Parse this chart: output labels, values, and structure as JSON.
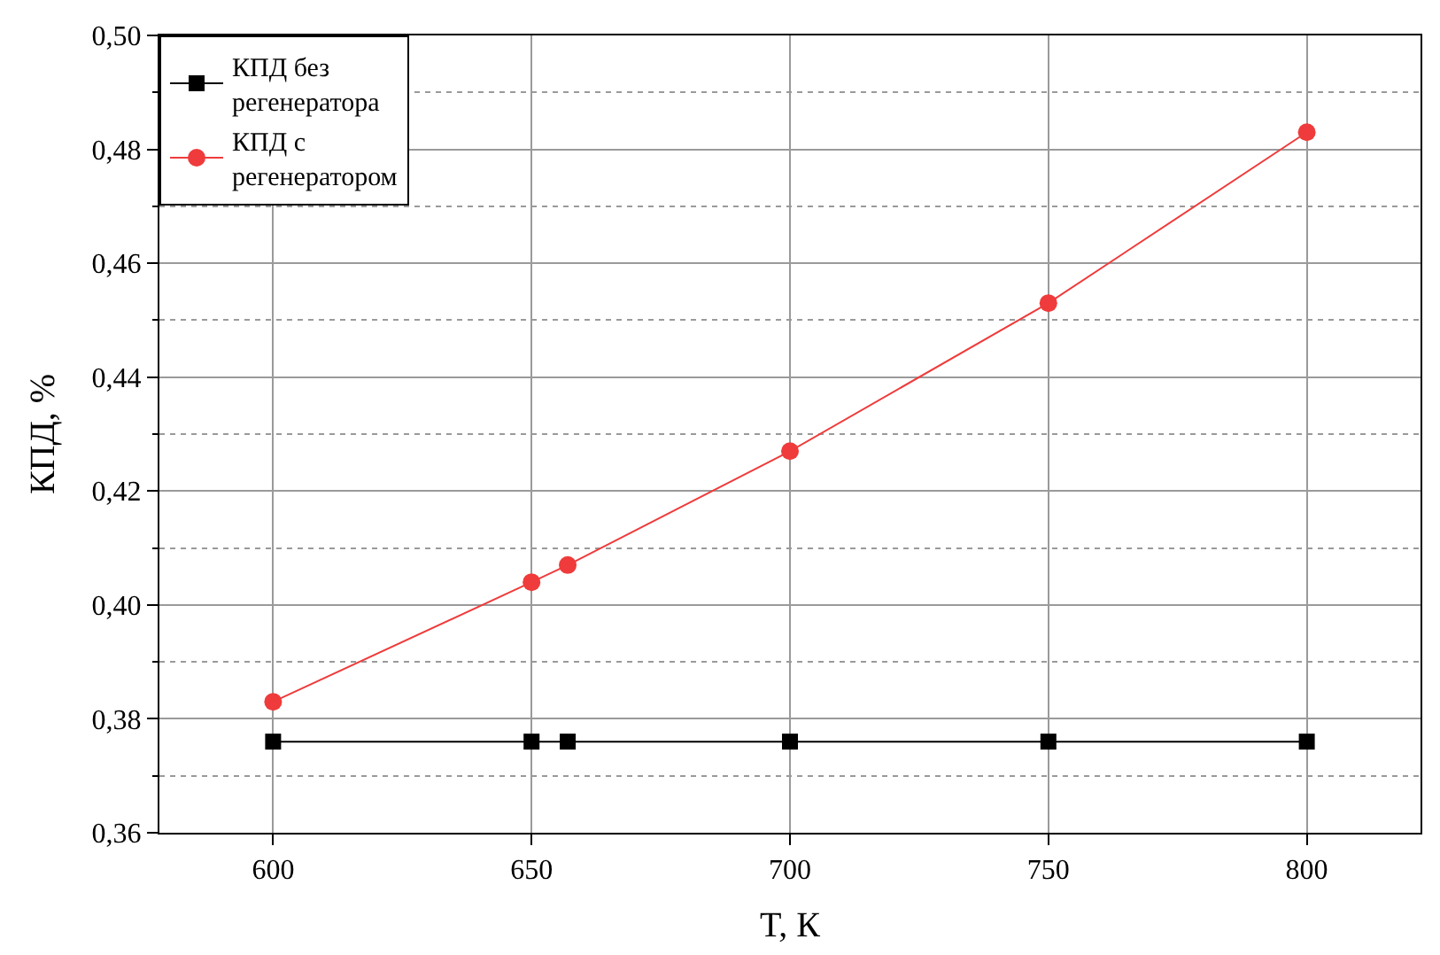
{
  "chart_data": {
    "type": "line",
    "xlabel": "T, К",
    "ylabel": "КПД, %",
    "x": [
      600,
      650,
      657,
      700,
      750,
      800
    ],
    "series": [
      {
        "name": "КПД без регенератора",
        "color": "#000000",
        "marker": "square",
        "values": [
          0.376,
          0.376,
          0.376,
          0.376,
          0.376,
          0.376
        ]
      },
      {
        "name": "КПД с регенератором",
        "color": "#ef3b3b",
        "marker": "circle",
        "values": [
          0.383,
          0.404,
          0.407,
          0.427,
          0.453,
          0.483
        ]
      }
    ],
    "xlim": [
      578,
      822
    ],
    "xticks": [
      600,
      650,
      700,
      750,
      800
    ],
    "ylim": [
      0.36,
      0.5
    ],
    "yticks": [
      {
        "value": 0.36,
        "label": "0,36"
      },
      {
        "value": 0.37,
        "label": null
      },
      {
        "value": 0.38,
        "label": "0,38"
      },
      {
        "value": 0.39,
        "label": null
      },
      {
        "value": 0.4,
        "label": "0,40"
      },
      {
        "value": 0.41,
        "label": null
      },
      {
        "value": 0.42,
        "label": "0,42"
      },
      {
        "value": 0.43,
        "label": null
      },
      {
        "value": 0.44,
        "label": "0,44"
      },
      {
        "value": 0.45,
        "label": null
      },
      {
        "value": 0.46,
        "label": "0,46"
      },
      {
        "value": 0.47,
        "label": null
      },
      {
        "value": 0.48,
        "label": "0,48"
      },
      {
        "value": 0.49,
        "label": null
      },
      {
        "value": 0.5,
        "label": "0,50"
      }
    ],
    "grid": true,
    "legend": "top left",
    "line_style": "solid"
  }
}
